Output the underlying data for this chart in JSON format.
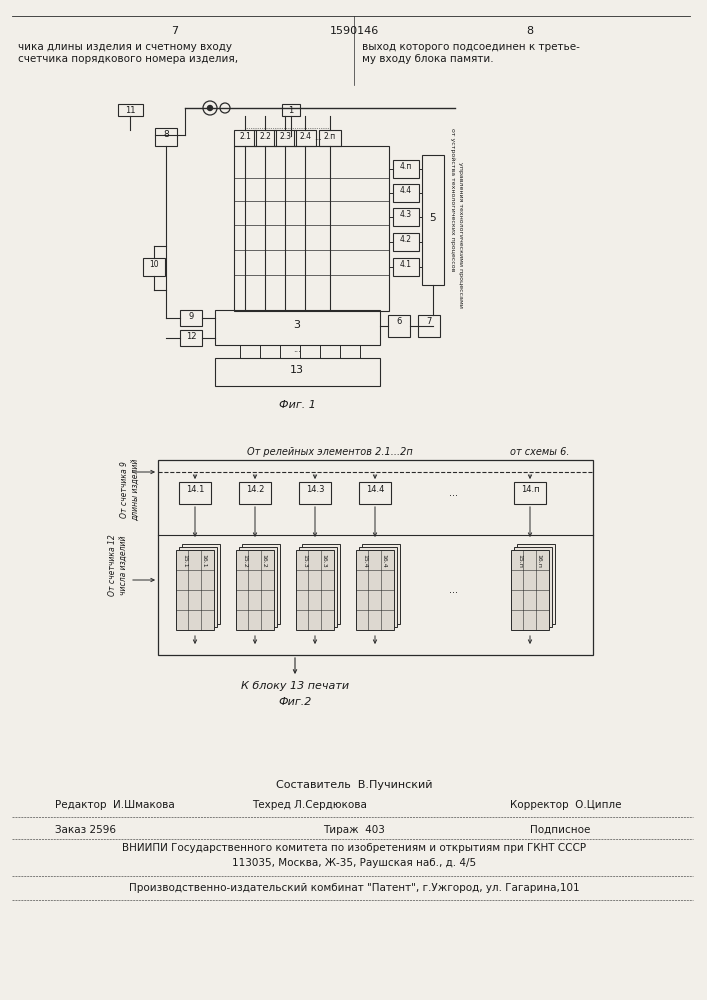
{
  "bg_color": "#f2efe9",
  "page_width": 7.07,
  "page_height": 10.0,
  "header": {
    "left_num": "7",
    "center_num": "1590146",
    "right_num": "8"
  },
  "text_col1": "чика длины изделия и счетному входу\nсчетчика порядкового номера изделия,",
  "text_col2": "выход которого подсоединен к третье-\nму входу блока памяти.",
  "fig1_caption": "Фиг. 1",
  "fig2_caption": "Фиг.2",
  "fig2_label_top": "От релейных элементов 2.1...2п",
  "fig2_label_top_right": "от схемы 6.",
  "fig2_label_left1": "От счетчика 9\nдлины изделий",
  "fig2_label_left2": "От счетчика 12\nчисла изделий",
  "fig2_label_bottom": "К блоку 13 печати",
  "footer_author": "Составитель  В.Пучинский",
  "footer_editor": "Редактор  И.Шмакова",
  "footer_tech": "Техред Л.Сердюкова",
  "footer_corrector": "Корректор  О.Ципле",
  "footer_order": "Заказ 2596",
  "footer_print": "Тираж  403",
  "footer_sign": "Подписное",
  "footer_vniip": "ВНИИПИ Государственного комитета по изобретениям и открытиям при ГКНТ СССР",
  "footer_addr": "113035, Москва, Ж-35, Раушская наб., д. 4/5",
  "footer_plant": "Производственно-издательский комбинат \"Патент\", г.Ужгород, ул. Гагарина,101",
  "line_color": "#2a2a2a",
  "text_color": "#1a1a1a"
}
